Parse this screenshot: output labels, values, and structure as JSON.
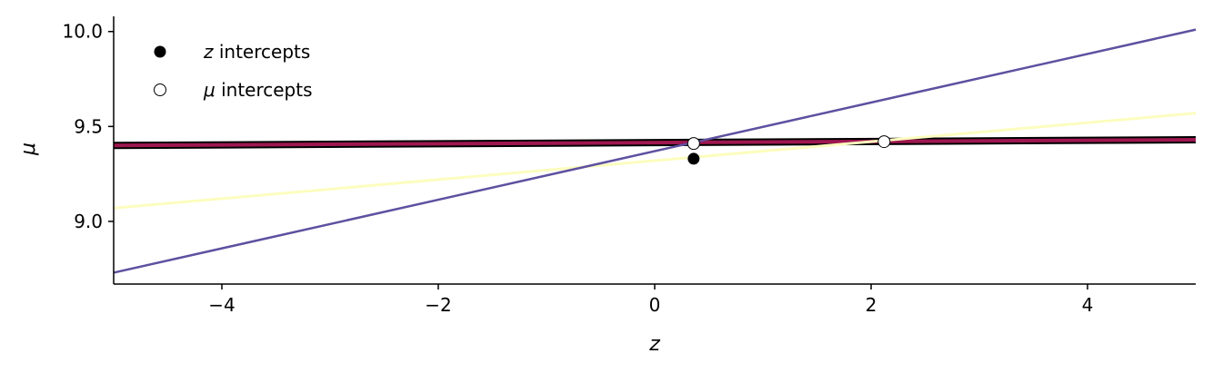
{
  "chart_data": {
    "type": "line",
    "xlabel": "z",
    "ylabel": "μ",
    "xlim": [
      -5,
      5
    ],
    "ylim": [
      8.67,
      10.08
    ],
    "xticks": [
      -4,
      -2,
      0,
      2,
      4
    ],
    "xtick_labels": [
      "−4",
      "−2",
      "0",
      "2",
      "4"
    ],
    "yticks": [
      9.0,
      9.5,
      10.0
    ],
    "ytick_labels": [
      "9.0",
      "9.5",
      "10.0"
    ],
    "grid": false,
    "legend_placement": "top-left",
    "series": [
      {
        "color": "#000000",
        "width": 8,
        "x": [
          -5,
          5
        ],
        "y": [
          9.4,
          9.43
        ]
      },
      {
        "color": "#9e1750",
        "width": 4,
        "x": [
          -5,
          5
        ],
        "y": [
          9.4,
          9.43
        ]
      },
      {
        "color": "#fcfdbf",
        "width": 3,
        "x": [
          -5,
          5
        ],
        "y": [
          9.07,
          9.57
        ]
      },
      {
        "color": "#5e50a0",
        "width": 2.5,
        "x": [
          -5,
          5
        ],
        "y": [
          8.73,
          10.01
        ]
      }
    ],
    "z_intercepts": [
      {
        "x": 0.36,
        "y": 9.33
      }
    ],
    "mu_intercepts": [
      {
        "x": 0.36,
        "y": 9.41
      },
      {
        "x": 2.12,
        "y": 9.42
      }
    ],
    "legend": [
      {
        "symbol": "z",
        "text": " intercepts",
        "marker": "filled"
      },
      {
        "symbol": "μ",
        "text": " intercepts",
        "marker": "open"
      }
    ]
  }
}
